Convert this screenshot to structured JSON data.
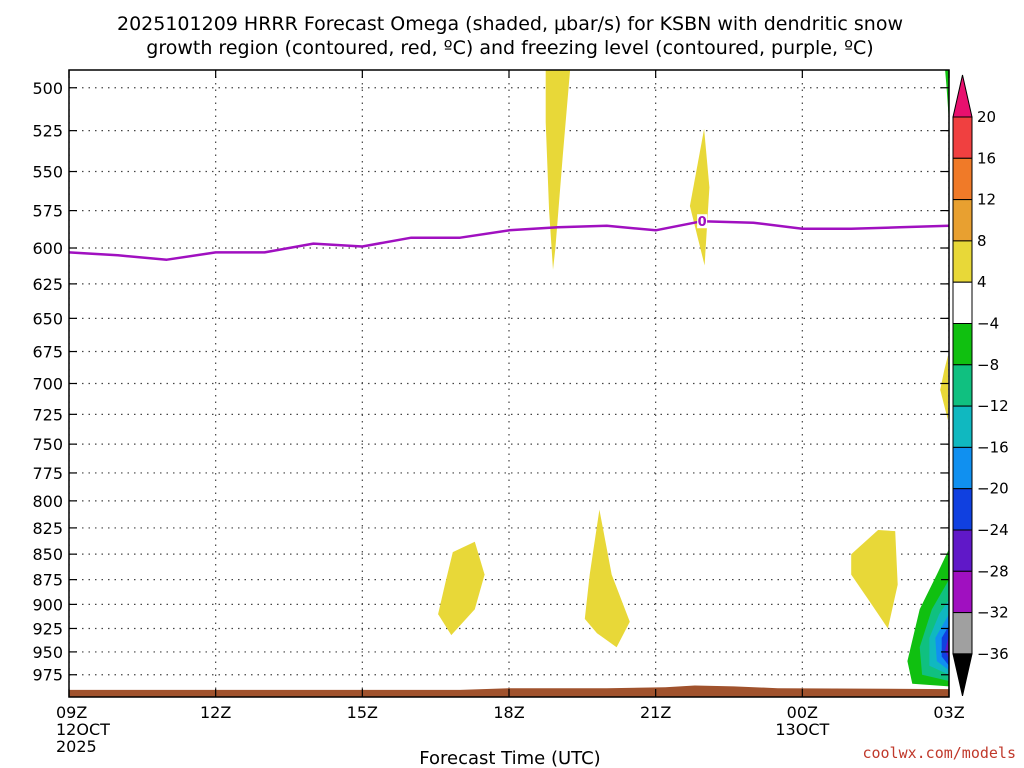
{
  "chart_data": {
    "type": "contour-cross-section",
    "title_lines": [
      "2025101209 HRRR Forecast Omega (shaded, μbar/s) for KSBN with dendritic snow",
      "growth region (contoured, red, ºC) and freezing level (contoured, purple, ºC)"
    ],
    "xlabel": "Forecast Time (UTC)",
    "credit": "coolwx.com/models",
    "y_axis": {
      "quantity": "pressure (mb)",
      "ticks": [
        500,
        525,
        550,
        575,
        600,
        625,
        650,
        675,
        700,
        725,
        750,
        775,
        800,
        825,
        850,
        875,
        900,
        925,
        950,
        975
      ],
      "range": [
        490,
        1000
      ],
      "scale": "log",
      "inverted": true
    },
    "x_axis": {
      "range_hours": [
        0,
        18
      ],
      "ticks": [
        {
          "hour": 0,
          "lines": [
            "09Z",
            "12OCT",
            "2025"
          ]
        },
        {
          "hour": 3,
          "lines": [
            "12Z"
          ]
        },
        {
          "hour": 6,
          "lines": [
            "15Z"
          ]
        },
        {
          "hour": 9,
          "lines": [
            "18Z"
          ]
        },
        {
          "hour": 12,
          "lines": [
            "21Z"
          ]
        },
        {
          "hour": 15,
          "lines": [
            "00Z",
            "13OCT"
          ]
        },
        {
          "hour": 18,
          "lines": [
            "03Z"
          ]
        }
      ]
    },
    "grid": true,
    "colorbar": {
      "labels": [
        "20",
        "16",
        "12",
        "8",
        "4",
        "−4",
        "−8",
        "−12",
        "−16",
        "−20",
        "−24",
        "−28",
        "−32",
        "−36"
      ],
      "colors": [
        "#e8106e",
        "#f04040",
        "#f07a28",
        "#e8a030",
        "#e8d838",
        "#ffffff",
        "#10c010",
        "#10c080",
        "#10b8c0",
        "#1090f0",
        "#1040e0",
        "#6018c8",
        "#a010c0",
        "#a0a0a0",
        "#000000"
      ]
    },
    "freezing_level": {
      "color": "#a010c0",
      "label": "0",
      "label_hour": 12.95,
      "points": [
        {
          "hour": 0,
          "p": 603
        },
        {
          "hour": 1,
          "p": 605
        },
        {
          "hour": 2,
          "p": 608
        },
        {
          "hour": 3,
          "p": 603
        },
        {
          "hour": 4,
          "p": 603
        },
        {
          "hour": 5,
          "p": 597
        },
        {
          "hour": 6,
          "p": 599
        },
        {
          "hour": 7,
          "p": 593
        },
        {
          "hour": 8,
          "p": 593
        },
        {
          "hour": 9,
          "p": 588
        },
        {
          "hour": 10,
          "p": 586
        },
        {
          "hour": 11,
          "p": 585
        },
        {
          "hour": 12,
          "p": 588
        },
        {
          "hour": 12.95,
          "p": 582
        },
        {
          "hour": 14,
          "p": 583
        },
        {
          "hour": 15,
          "p": 587
        },
        {
          "hour": 16,
          "p": 587
        },
        {
          "hour": 17,
          "p": 586
        },
        {
          "hour": 18,
          "p": 585
        }
      ]
    },
    "omega_regions": [
      {
        "value_range": [
          4,
          8
        ],
        "color": "#e8d838",
        "points": [
          {
            "hour": 9.75,
            "p": 490
          },
          {
            "hour": 10.25,
            "p": 490
          },
          {
            "hour": 10.1,
            "p": 540
          },
          {
            "hour": 9.95,
            "p": 600
          },
          {
            "hour": 9.9,
            "p": 615
          },
          {
            "hour": 9.82,
            "p": 575
          },
          {
            "hour": 9.75,
            "p": 520
          }
        ]
      },
      {
        "value_range": [
          4,
          8
        ],
        "color": "#e8d838",
        "points": [
          {
            "hour": 12.99,
            "p": 524
          },
          {
            "hour": 13.1,
            "p": 560
          },
          {
            "hour": 13.0,
            "p": 612
          },
          {
            "hour": 12.7,
            "p": 572
          }
        ]
      },
      {
        "value_range": [
          4,
          8
        ],
        "color": "#e8d838",
        "points": [
          {
            "hour": 7.7,
            "p": 878
          },
          {
            "hour": 7.85,
            "p": 848
          },
          {
            "hour": 8.3,
            "p": 838
          },
          {
            "hour": 8.5,
            "p": 870
          },
          {
            "hour": 8.3,
            "p": 905
          },
          {
            "hour": 7.82,
            "p": 932
          },
          {
            "hour": 7.55,
            "p": 910
          }
        ]
      },
      {
        "value_range": [
          4,
          8
        ],
        "color": "#e8d838",
        "points": [
          {
            "hour": 10.85,
            "p": 808
          },
          {
            "hour": 11.1,
            "p": 870
          },
          {
            "hour": 11.47,
            "p": 918
          },
          {
            "hour": 11.2,
            "p": 945
          },
          {
            "hour": 10.8,
            "p": 930
          },
          {
            "hour": 10.55,
            "p": 915
          },
          {
            "hour": 10.65,
            "p": 870
          }
        ]
      },
      {
        "value_range": [
          4,
          8
        ],
        "color": "#e8d838",
        "points": [
          {
            "hour": 16.0,
            "p": 850
          },
          {
            "hour": 16.55,
            "p": 827
          },
          {
            "hour": 16.9,
            "p": 828
          },
          {
            "hour": 16.95,
            "p": 880
          },
          {
            "hour": 16.75,
            "p": 925
          },
          {
            "hour": 16.35,
            "p": 895
          },
          {
            "hour": 16.0,
            "p": 870
          }
        ]
      },
      {
        "value_range": [
          4,
          8
        ],
        "color": "#e8d838",
        "points": [
          {
            "hour": 17.98,
            "p": 678
          },
          {
            "hour": 17.98,
            "p": 730
          },
          {
            "hour": 17.82,
            "p": 705
          },
          {
            "hour": 17.9,
            "p": 690
          }
        ]
      },
      {
        "value_range": [
          -8,
          -4
        ],
        "color": "#10c010",
        "points": [
          {
            "hour": 17.92,
            "p": 490
          },
          {
            "hour": 18,
            "p": 490
          },
          {
            "hour": 18,
            "p": 520
          },
          {
            "hour": 17.95,
            "p": 500
          }
        ]
      },
      {
        "value_range": [
          -8,
          -4
        ],
        "color": "#10c010",
        "points": [
          {
            "hour": 18,
            "p": 845
          },
          {
            "hour": 18,
            "p": 988
          },
          {
            "hour": 17.25,
            "p": 985
          },
          {
            "hour": 17.15,
            "p": 960
          },
          {
            "hour": 17.4,
            "p": 905
          },
          {
            "hour": 17.75,
            "p": 870
          }
        ]
      },
      {
        "value_range": [
          -12,
          -8
        ],
        "color": "#10c080",
        "points": [
          {
            "hour": 18,
            "p": 875
          },
          {
            "hour": 18,
            "p": 982
          },
          {
            "hour": 17.45,
            "p": 975
          },
          {
            "hour": 17.4,
            "p": 945
          },
          {
            "hour": 17.65,
            "p": 905
          }
        ]
      },
      {
        "value_range": [
          -16,
          -12
        ],
        "color": "#10b8c0",
        "points": [
          {
            "hour": 18,
            "p": 895
          },
          {
            "hour": 18,
            "p": 975
          },
          {
            "hour": 17.6,
            "p": 965
          },
          {
            "hour": 17.6,
            "p": 935
          },
          {
            "hour": 17.8,
            "p": 910
          }
        ]
      },
      {
        "value_range": [
          -20,
          -16
        ],
        "color": "#1090f0",
        "points": [
          {
            "hour": 18,
            "p": 910
          },
          {
            "hour": 18,
            "p": 970
          },
          {
            "hour": 17.75,
            "p": 960
          },
          {
            "hour": 17.72,
            "p": 935
          }
        ]
      },
      {
        "value_range": [
          -24,
          -20
        ],
        "color": "#1040e0",
        "points": [
          {
            "hour": 18,
            "p": 922
          },
          {
            "hour": 18,
            "p": 965
          },
          {
            "hour": 17.85,
            "p": 955
          },
          {
            "hour": 17.85,
            "p": 935
          }
        ]
      },
      {
        "value_range": [
          -28,
          -24
        ],
        "color": "#6018c8",
        "points": [
          {
            "hour": 18,
            "p": 932
          },
          {
            "hour": 18,
            "p": 958
          },
          {
            "hour": 17.92,
            "p": 948
          }
        ]
      }
    ],
    "terrain": {
      "color": "#a0522d",
      "points": [
        {
          "hour": 0,
          "p": 992
        },
        {
          "hour": 8,
          "p": 992
        },
        {
          "hour": 9,
          "p": 990
        },
        {
          "hour": 11,
          "p": 990
        },
        {
          "hour": 12.2,
          "p": 989
        },
        {
          "hour": 12.8,
          "p": 987
        },
        {
          "hour": 13.6,
          "p": 988
        },
        {
          "hour": 14.5,
          "p": 990
        },
        {
          "hour": 18,
          "p": 991
        }
      ]
    }
  }
}
